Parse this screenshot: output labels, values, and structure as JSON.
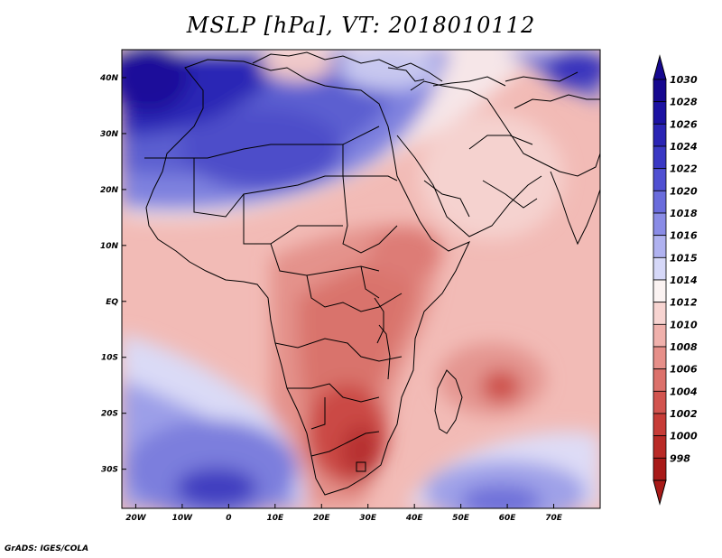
{
  "title": "MSLP [hPa], VT: 2018010112",
  "credit": "GrADS: IGES/COLA",
  "map": {
    "lon_range": [
      -23,
      80
    ],
    "lat_range": [
      -37,
      45
    ],
    "lon_ticks": [
      {
        "value": -20,
        "label": "20W"
      },
      {
        "value": -10,
        "label": "10W"
      },
      {
        "value": 0,
        "label": "0"
      },
      {
        "value": 10,
        "label": "10E"
      },
      {
        "value": 20,
        "label": "20E"
      },
      {
        "value": 30,
        "label": "30E"
      },
      {
        "value": 40,
        "label": "40E"
      },
      {
        "value": 50,
        "label": "50E"
      },
      {
        "value": 60,
        "label": "60E"
      },
      {
        "value": 70,
        "label": "70E"
      }
    ],
    "lat_ticks": [
      {
        "value": 40,
        "label": "40N"
      },
      {
        "value": 30,
        "label": "30N"
      },
      {
        "value": 20,
        "label": "20N"
      },
      {
        "value": 10,
        "label": "10N"
      },
      {
        "value": 0,
        "label": "EQ"
      },
      {
        "value": -10,
        "label": "10S"
      },
      {
        "value": -20,
        "label": "20S"
      },
      {
        "value": -30,
        "label": "30S"
      }
    ]
  },
  "colorbar": {
    "levels": [
      {
        "label": "1030",
        "color": "#16088f"
      },
      {
        "label": "1028",
        "color": "#1c12a2"
      },
      {
        "label": "1026",
        "color": "#2a24b4"
      },
      {
        "label": "1024",
        "color": "#3a38c4"
      },
      {
        "label": "1022",
        "color": "#5050d2"
      },
      {
        "label": "1020",
        "color": "#6a6cdc"
      },
      {
        "label": "1018",
        "color": "#8a8ce6"
      },
      {
        "label": "1016",
        "color": "#b0b2f0"
      },
      {
        "label": "1015",
        "color": "#d6d8f8"
      },
      {
        "label": "1014",
        "color": "#fbf3f2"
      },
      {
        "label": "1012",
        "color": "#f7d4d1"
      },
      {
        "label": "1010",
        "color": "#f0b1ac"
      },
      {
        "label": "1008",
        "color": "#e68f89"
      },
      {
        "label": "1006",
        "color": "#dc716b"
      },
      {
        "label": "1004",
        "color": "#d2544f"
      },
      {
        "label": "1002",
        "color": "#c73c37"
      },
      {
        "label": "1000",
        "color": "#b92a26"
      },
      {
        "label": "998",
        "color": "#a81a18"
      }
    ],
    "below_color": "#a81a18",
    "above_color": "#16088f"
  }
}
